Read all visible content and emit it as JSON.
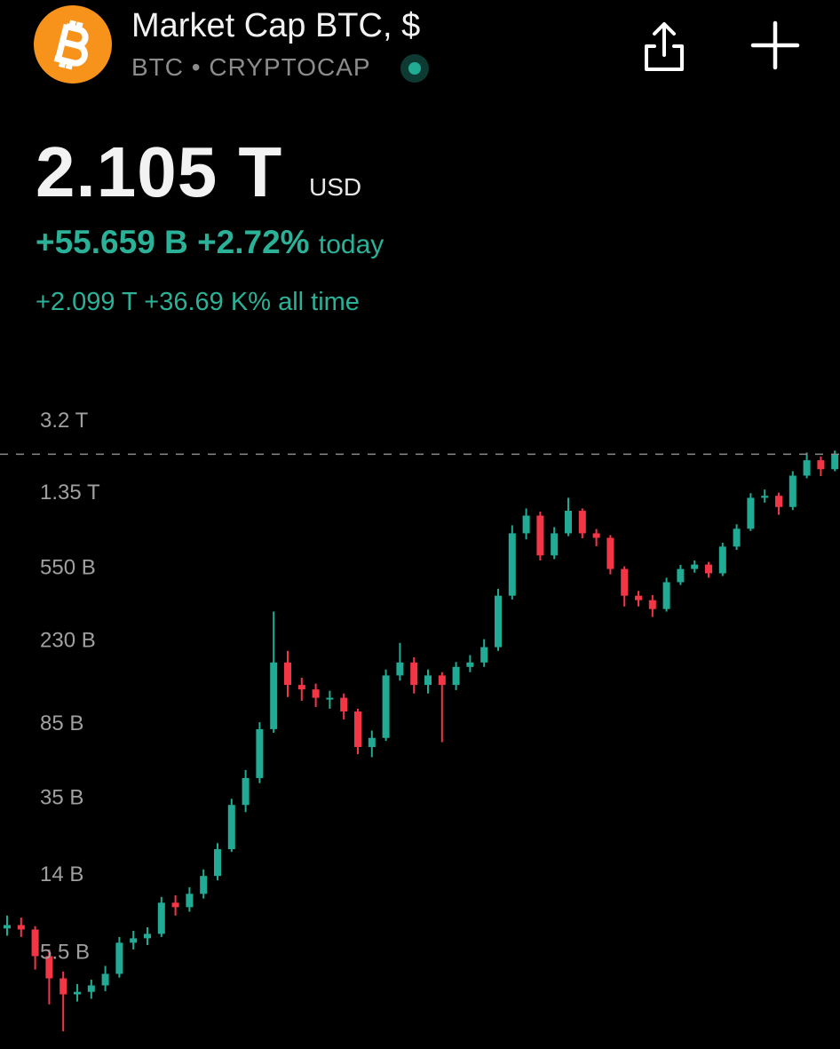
{
  "header": {
    "title": "Market Cap BTC, $",
    "symbol": "BTC",
    "exchange": "CRYPTOCAP",
    "price": "2.105 T",
    "currency": "USD",
    "change": "+55.659 B",
    "change_percent": "+2.72%",
    "change_period": "today",
    "all_time_change": "+2.099 T",
    "all_time_percent": "+36.69 K%",
    "all_time_period": "all time"
  },
  "chart_data": {
    "type": "candlestick",
    "log_scale": true,
    "up_color": "#22ab94",
    "down_color": "#f23645",
    "ylim": [
      1700000000.0,
      4500000000000.0
    ],
    "yticks": [
      {
        "value": 3200000000000.0,
        "label": "3.2 T"
      },
      {
        "value": 1350000000000.0,
        "label": "1.35 T"
      },
      {
        "value": 550000000000.0,
        "label": "550 B"
      },
      {
        "value": 230000000000.0,
        "label": "230 B"
      },
      {
        "value": 85000000000.0,
        "label": "85 B"
      },
      {
        "value": 35000000000.0,
        "label": "35 B"
      },
      {
        "value": 14000000000.0,
        "label": "14 B"
      },
      {
        "value": 5500000000.0,
        "label": "5.5 B"
      }
    ],
    "open": [
      7200000000.0,
      7500000000.0,
      7110000000.0,
      5170000000.0,
      3960000000.0,
      3270000000.0,
      3370000000.0,
      3640000000.0,
      4180000000.0,
      6070000000.0,
      6400000000.0,
      6750000000.0,
      9800000000.0,
      9290000000.0,
      10900000000.0,
      13500000000.0,
      18600000000.0,
      31600000000.0,
      43600000000.0,
      78300000000.0,
      174000000000.0,
      133000000000.0,
      126000000000.0,
      114000000000.0,
      114000000000.0,
      96800000000.0,
      63200000000.0,
      70500000000.0,
      149000000000.0,
      174000000000.0,
      133000000000.0,
      149000000000.0,
      133000000000.0,
      165000000000.0,
      174000000000.0,
      209000000000.0,
      387000000000.0,
      817000000000.0,
      1010000000000.0,
      627000000000.0,
      817000000000.0,
      1070000000000.0,
      817000000000.0,
      774000000000.0,
      533000000000.0,
      387000000000.0,
      367000000000.0,
      330000000000.0,
      455000000000.0,
      533000000000.0,
      562000000000.0,
      506000000000.0,
      697000000000.0,
      863000000000.0,
      1250000000000.0,
      1280000000000.0,
      1120000000000.0,
      1630000000000.0,
      1960000000000.0,
      1760000000000.0
    ],
    "high": [
      8400000000.0,
      8200000000.0,
      7400000000.0,
      5600000000.0,
      4300000000.0,
      3700000000.0,
      3900000000.0,
      4600000000.0,
      6500000000.0,
      7000000000.0,
      7300000000.0,
      10500000000.0,
      10700000000.0,
      11800000000.0,
      14600000000.0,
      20000000000.0,
      34000000000.0,
      48000000000.0,
      85000000000.0,
      320000000000.0,
      200000000000.0,
      145000000000.0,
      135000000000.0,
      124000000000.0,
      120000000000.0,
      100000000000.0,
      77000000000.0,
      160000000000.0,
      220000000000.0,
      185000000000.0,
      160000000000.0,
      155000000000.0,
      175000000000.0,
      190000000000.0,
      230000000000.0,
      420000000000.0,
      900000000000.0,
      1100000000000.0,
      1060000000000.0,
      880000000000.0,
      1250000000000.0,
      1100000000000.0,
      860000000000.0,
      800000000000.0,
      550000000000.0,
      410000000000.0,
      390000000000.0,
      480000000000.0,
      560000000000.0,
      590000000000.0,
      580000000000.0,
      730000000000.0,
      910000000000.0,
      1320000000000.0,
      1380000000000.0,
      1330000000000.0,
      1720000000000.0,
      2150000000000.0,
      2050000000000.0,
      2200000000000.0
    ],
    "low": [
      6600000000.0,
      6500000000.0,
      4400000000.0,
      2900000000.0,
      2100000000.0,
      3000000000.0,
      3100000000.0,
      3400000000.0,
      4000000000.0,
      5600000000.0,
      5900000000.0,
      6500000000.0,
      8400000000.0,
      8800000000.0,
      10300000000.0,
      12800000000.0,
      18000000000.0,
      29000000000.0,
      41000000000.0,
      75000000000.0,
      115000000000.0,
      110000000000.0,
      102000000000.0,
      100000000000.0,
      88000000000.0,
      58000000000.0,
      56000000000.0,
      68000000000.0,
      140000000000.0,
      120000000000.0,
      120000000000.0,
      67000000000.0,
      125000000000.0,
      155000000000.0,
      165000000000.0,
      200000000000.0,
      370000000000.0,
      760000000000.0,
      590000000000.0,
      600000000000.0,
      790000000000.0,
      770000000000.0,
      700000000000.0,
      500000000000.0,
      340000000000.0,
      340000000000.0,
      300000000000.0,
      320000000000.0,
      440000000000.0,
      510000000000.0,
      480000000000.0,
      490000000000.0,
      670000000000.0,
      840000000000.0,
      1180000000000.0,
      1020000000000.0,
      1080000000000.0,
      1580000000000.0,
      1620000000000.0,
      1720000000000.0
    ],
    "close": [
      7500000000.0,
      7110000000.0,
      5170000000.0,
      3960000000.0,
      3270000000.0,
      3370000000.0,
      3640000000.0,
      4180000000.0,
      6070000000.0,
      6400000000.0,
      6750000000.0,
      9800000000.0,
      9290000000.0,
      10900000000.0,
      13500000000.0,
      18600000000.0,
      31600000000.0,
      43600000000.0,
      78300000000.0,
      174000000000.0,
      133000000000.0,
      126000000000.0,
      114000000000.0,
      114000000000.0,
      96800000000.0,
      63200000000.0,
      70500000000.0,
      149000000000.0,
      174000000000.0,
      133000000000.0,
      149000000000.0,
      133000000000.0,
      165000000000.0,
      174000000000.0,
      209000000000.0,
      387000000000.0,
      817000000000.0,
      1010000000000.0,
      627000000000.0,
      817000000000.0,
      1070000000000.0,
      817000000000.0,
      774000000000.0,
      533000000000.0,
      387000000000.0,
      367000000000.0,
      330000000000.0,
      455000000000.0,
      533000000000.0,
      562000000000.0,
      506000000000.0,
      697000000000.0,
      863000000000.0,
      1250000000000.0,
      1280000000000.0,
      1120000000000.0,
      1630000000000.0,
      1960000000000.0,
      1760000000000.0,
      2105000000000.0
    ]
  }
}
